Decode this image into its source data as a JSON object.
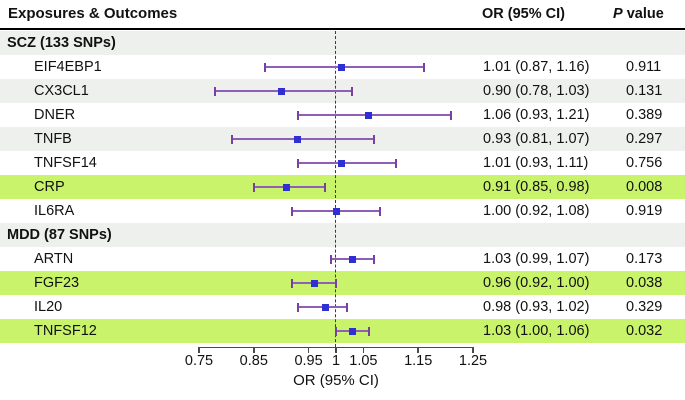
{
  "header": {
    "title": "Exposures & Outcomes",
    "or_col": "OR (95% CI)",
    "p_col_italic": "P",
    "p_col_rest": " value"
  },
  "axis": {
    "label": "OR (95% CI)",
    "min": 0.75,
    "max": 1.25,
    "reference_line": 1,
    "ticks": [
      {
        "label": "0.75",
        "value": 0.75
      },
      {
        "label": "0.85",
        "value": 0.85
      },
      {
        "label": "0.95",
        "value": 0.95
      },
      {
        "label": "1",
        "value": 1.0
      },
      {
        "label": "1.05",
        "value": 1.05
      },
      {
        "label": "1.15",
        "value": 1.15
      },
      {
        "label": "1.25",
        "value": 1.25
      }
    ]
  },
  "colors": {
    "highlight_green": "#c9f36a",
    "stripe_gray": "#eef0ee",
    "row_white": "#ffffff",
    "whisker_purple": "#8e5fb4",
    "whisker_cap_purple": "#7a3fa2",
    "marker_blue": "#2f2fd3",
    "ref_line_gray": "#3c3c3c",
    "axis_gray": "#4a4a4a"
  },
  "chart_data": {
    "type": "forest",
    "marker": "square",
    "title": "",
    "xlabel": "OR (95% CI)",
    "x_range": [
      0.75,
      1.25
    ],
    "reference_line": 1.0,
    "columns": [
      "Exposures & Outcomes",
      "OR (95% CI)",
      "P value"
    ],
    "groups": [
      {
        "label": "SCZ (133 SNPs)",
        "rows": [
          {
            "name": "EIF4EBP1",
            "or": 1.01,
            "ci_low": 0.87,
            "ci_high": 1.16,
            "or_ci_text": "1.01 (0.87, 1.16)",
            "p_value": "0.911",
            "highlight": false
          },
          {
            "name": "CX3CL1",
            "or": 0.9,
            "ci_low": 0.78,
            "ci_high": 1.03,
            "or_ci_text": "0.90 (0.78, 1.03)",
            "p_value": "0.131",
            "highlight": false
          },
          {
            "name": "DNER",
            "or": 1.06,
            "ci_low": 0.93,
            "ci_high": 1.21,
            "or_ci_text": "1.06 (0.93, 1.21)",
            "p_value": "0.389",
            "highlight": false
          },
          {
            "name": "TNFB",
            "or": 0.93,
            "ci_low": 0.81,
            "ci_high": 1.07,
            "or_ci_text": "0.93 (0.81, 1.07)",
            "p_value": "0.297",
            "highlight": false
          },
          {
            "name": "TNFSF14",
            "or": 1.01,
            "ci_low": 0.93,
            "ci_high": 1.11,
            "or_ci_text": "1.01 (0.93, 1.11)",
            "p_value": "0.756",
            "highlight": false
          },
          {
            "name": "CRP",
            "or": 0.91,
            "ci_low": 0.85,
            "ci_high": 0.98,
            "or_ci_text": "0.91 (0.85, 0.98)",
            "p_value": "0.008",
            "highlight": true
          },
          {
            "name": "IL6RA",
            "or": 1.0,
            "ci_low": 0.92,
            "ci_high": 1.08,
            "or_ci_text": "1.00 (0.92, 1.08)",
            "p_value": "0.919",
            "highlight": false
          }
        ]
      },
      {
        "label": "MDD (87 SNPs)",
        "rows": [
          {
            "name": "ARTN",
            "or": 1.03,
            "ci_low": 0.99,
            "ci_high": 1.07,
            "or_ci_text": "1.03 (0.99, 1.07)",
            "p_value": "0.173",
            "highlight": false
          },
          {
            "name": "FGF23",
            "or": 0.96,
            "ci_low": 0.92,
            "ci_high": 1.0,
            "or_ci_text": "0.96 (0.92, 1.00)",
            "p_value": "0.038",
            "highlight": true
          },
          {
            "name": "IL20",
            "or": 0.98,
            "ci_low": 0.93,
            "ci_high": 1.02,
            "or_ci_text": "0.98 (0.93, 1.02)",
            "p_value": "0.329",
            "highlight": false
          },
          {
            "name": "TNFSF12",
            "or": 1.03,
            "ci_low": 1.0,
            "ci_high": 1.06,
            "or_ci_text": "1.03 (1.00, 1.06)",
            "p_value": "0.032",
            "highlight": true
          }
        ]
      }
    ]
  }
}
